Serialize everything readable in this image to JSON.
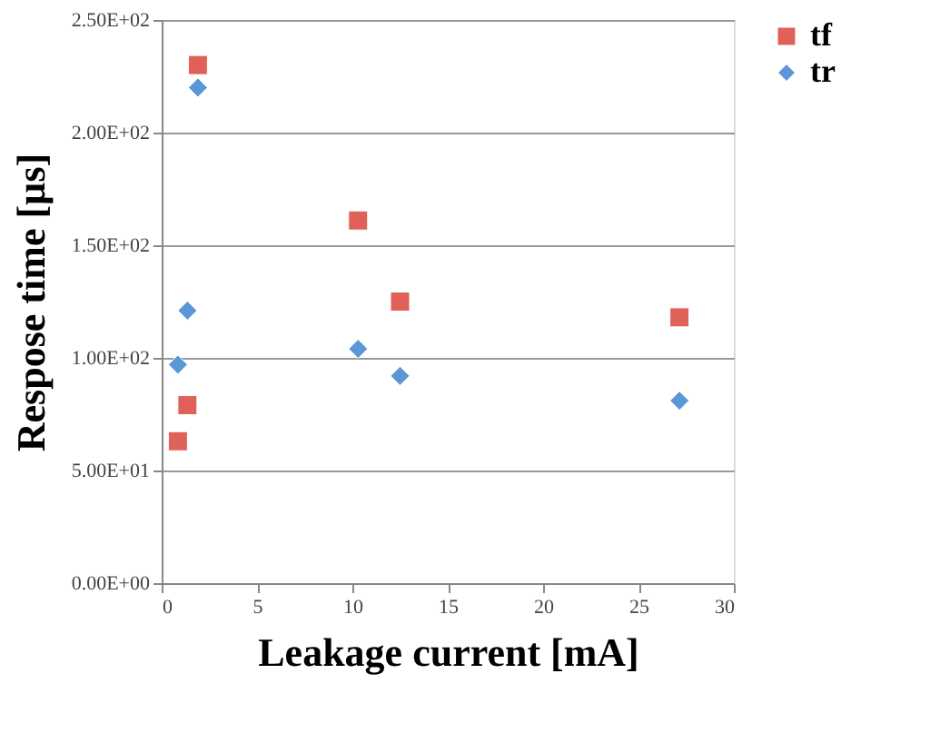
{
  "chart_data": {
    "type": "scatter",
    "xlabel": "Leakage current [mA]",
    "ylabel": "Respose time [µs]",
    "xlim": [
      0,
      30
    ],
    "xticks": [
      0,
      5,
      10,
      15,
      20,
      25,
      30
    ],
    "ylim": [
      0,
      250
    ],
    "yticks": [
      {
        "value": 0,
        "label": "0.00E+00"
      },
      {
        "value": 50,
        "label": "5.00E+01"
      },
      {
        "value": 100,
        "label": "1.00E+02"
      },
      {
        "value": 150,
        "label": "1.50E+02"
      },
      {
        "value": 200,
        "label": "2.00E+02"
      },
      {
        "value": 250,
        "label": "2.50E+02"
      }
    ],
    "grid": "y",
    "legend": "right",
    "series": [
      {
        "name": "tf",
        "color": "#e0605a",
        "marker": "square",
        "x": [
          0.85,
          1.35,
          1.9,
          10.3,
          12.5,
          27.15
        ],
        "values": [
          63,
          79,
          230,
          161,
          125,
          118
        ]
      },
      {
        "name": "tr",
        "color": "#5b96d6",
        "marker": "diamond",
        "x": [
          0.85,
          1.35,
          1.9,
          10.3,
          12.5,
          27.15
        ],
        "values": [
          97,
          121,
          220,
          104,
          92,
          81
        ]
      }
    ]
  }
}
